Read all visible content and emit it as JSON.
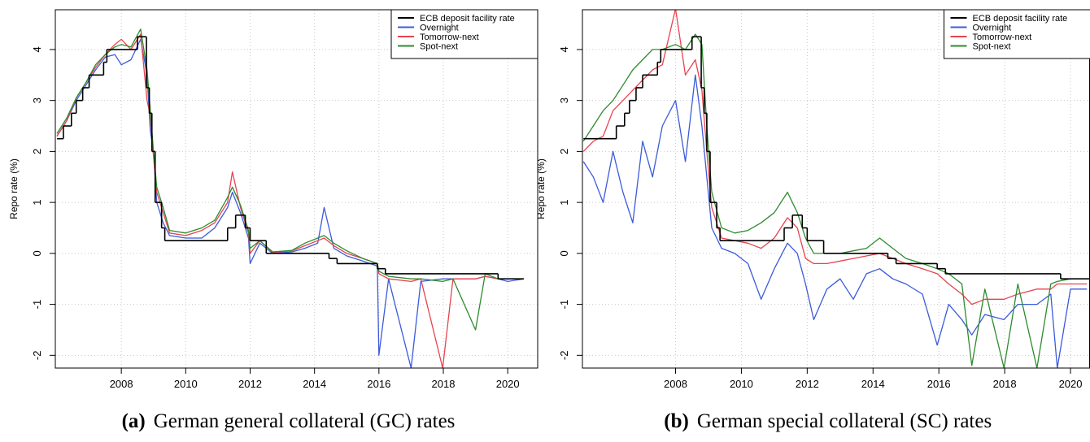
{
  "chart_data": [
    {
      "type": "line",
      "caption_label": "(a)",
      "caption": "German general collateral (GC) rates",
      "ylabel": "Repo rate (%)",
      "xlim": [
        2005.95,
        2020.93
      ],
      "ylim": [
        -2.25,
        4.78
      ],
      "xticks": [
        2008,
        2010,
        2012,
        2014,
        2016,
        2018,
        2020
      ],
      "yticks": [
        -2,
        -1,
        0,
        1,
        2,
        3,
        4
      ],
      "grid": true,
      "legend": "topright",
      "series": [
        {
          "name": "ECB deposit facility rate",
          "color": "#000000",
          "drawstyle": "steps-post",
          "x": [
            2006.0,
            2006.2,
            2006.45,
            2006.6,
            2006.8,
            2007.0,
            2007.45,
            2007.55,
            2008.5,
            2008.78,
            2008.87,
            2008.95,
            2009.05,
            2009.25,
            2009.35,
            2011.3,
            2011.55,
            2011.85,
            2012.0,
            2012.5,
            2014.45,
            2014.7,
            2015.95,
            2016.2,
            2019.7,
            2020.5
          ],
          "values": [
            2.25,
            2.5,
            2.75,
            3.0,
            3.25,
            3.5,
            3.75,
            4.0,
            4.25,
            3.25,
            2.75,
            2.0,
            1.0,
            0.5,
            0.25,
            0.5,
            0.75,
            0.5,
            0.25,
            0,
            -0.1,
            -0.2,
            -0.3,
            -0.4,
            -0.5,
            -0.5
          ]
        },
        {
          "name": "Overnight",
          "color": "#3b5bdb",
          "drawstyle": "lines",
          "x": [
            2006.0,
            2006.3,
            2006.6,
            2006.9,
            2007.2,
            2007.5,
            2007.8,
            2008.0,
            2008.3,
            2008.6,
            2008.8,
            2008.9,
            2009.0,
            2009.1,
            2009.3,
            2009.5,
            2010.0,
            2010.5,
            2010.9,
            2011.3,
            2011.45,
            2011.7,
            2011.95,
            2012.0,
            2012.3,
            2012.7,
            2013.3,
            2013.7,
            2014.1,
            2014.3,
            2014.6,
            2015.0,
            2015.5,
            2015.95,
            2016.0,
            2016.3,
            2017.0,
            2017.3,
            2017.98,
            2018.3,
            2019.0,
            2019.3,
            2019.7,
            2020.0,
            2020.5
          ],
          "values": [
            2.3,
            2.6,
            3.0,
            3.3,
            3.6,
            3.85,
            3.9,
            3.7,
            3.8,
            4.2,
            3.5,
            2.4,
            2.0,
            1.0,
            0.6,
            0.35,
            0.3,
            0.3,
            0.5,
            0.9,
            1.2,
            0.8,
            0.3,
            -0.2,
            0.2,
            0.0,
            0.03,
            0.1,
            0.2,
            0.9,
            0.1,
            -0.05,
            -0.15,
            -0.25,
            -2.0,
            -0.5,
            -2.25,
            -0.55,
            -0.5,
            -0.5,
            -0.5,
            -0.45,
            -0.5,
            -0.55,
            -0.5
          ]
        },
        {
          "name": "Tomorrow-next",
          "color": "#e8434f",
          "drawstyle": "lines",
          "x": [
            2006.0,
            2006.3,
            2006.6,
            2006.9,
            2007.2,
            2007.5,
            2007.8,
            2008.0,
            2008.3,
            2008.6,
            2008.8,
            2008.9,
            2009.0,
            2009.1,
            2009.3,
            2009.5,
            2010.0,
            2010.5,
            2010.9,
            2011.3,
            2011.45,
            2011.7,
            2011.95,
            2012.0,
            2012.3,
            2012.7,
            2013.3,
            2013.7,
            2014.1,
            2014.3,
            2014.6,
            2015.0,
            2015.5,
            2015.95,
            2016.0,
            2016.3,
            2017.0,
            2017.3,
            2017.98,
            2018.3,
            2019.0,
            2019.3,
            2019.7,
            2020.0,
            2020.5
          ],
          "values": [
            2.3,
            2.6,
            3.05,
            3.35,
            3.65,
            3.9,
            4.1,
            4.2,
            4.0,
            4.3,
            3.0,
            2.7,
            1.9,
            1.2,
            0.8,
            0.4,
            0.35,
            0.45,
            0.6,
            1.0,
            1.6,
            0.9,
            0.4,
            0.0,
            0.25,
            0.02,
            0.05,
            0.15,
            0.25,
            0.3,
            0.15,
            0.0,
            -0.1,
            -0.2,
            -0.4,
            -0.5,
            -0.55,
            -0.5,
            -2.25,
            -0.5,
            -0.5,
            -0.45,
            -0.5,
            -0.5,
            -0.5
          ]
        },
        {
          "name": "Spot-next",
          "color": "#2e8b2e",
          "drawstyle": "lines",
          "x": [
            2006.0,
            2006.3,
            2006.6,
            2006.9,
            2007.2,
            2007.5,
            2007.8,
            2008.0,
            2008.3,
            2008.6,
            2008.8,
            2008.9,
            2009.0,
            2009.1,
            2009.3,
            2009.5,
            2010.0,
            2010.5,
            2010.9,
            2011.3,
            2011.45,
            2011.7,
            2011.95,
            2012.0,
            2012.3,
            2012.7,
            2013.3,
            2013.7,
            2014.1,
            2014.3,
            2014.6,
            2015.0,
            2015.5,
            2015.95,
            2016.0,
            2016.3,
            2017.0,
            2017.3,
            2017.98,
            2018.3,
            2019.0,
            2019.3,
            2019.7,
            2020.0,
            2020.5
          ],
          "values": [
            2.35,
            2.65,
            3.05,
            3.35,
            3.7,
            3.9,
            4.05,
            4.1,
            4.05,
            4.4,
            3.6,
            2.8,
            2.0,
            1.3,
            0.9,
            0.45,
            0.4,
            0.5,
            0.65,
            1.1,
            1.3,
            0.95,
            0.45,
            0.1,
            0.25,
            0.03,
            0.06,
            0.2,
            0.3,
            0.35,
            0.2,
            0.05,
            -0.1,
            -0.2,
            -0.35,
            -0.45,
            -0.5,
            -0.5,
            -0.55,
            -0.5,
            -1.5,
            -0.4,
            -0.5,
            -0.5,
            -0.5
          ]
        }
      ]
    },
    {
      "type": "line",
      "caption_label": "(b)",
      "caption": "German special collateral (SC) rates",
      "ylabel": "Repo rate (%)",
      "xlim": [
        2005.17,
        2020.58
      ],
      "ylim": [
        -2.25,
        4.78
      ],
      "xticks": [
        2008,
        2010,
        2012,
        2014,
        2016,
        2018,
        2020
      ],
      "yticks": [
        -2,
        -1,
        0,
        1,
        2,
        3,
        4
      ],
      "grid": true,
      "legend": "topright",
      "series": [
        {
          "name": "ECB deposit facility rate",
          "color": "#000000",
          "drawstyle": "steps-post",
          "x": [
            2005.2,
            2006.2,
            2006.45,
            2006.6,
            2006.8,
            2007.0,
            2007.45,
            2007.55,
            2008.5,
            2008.78,
            2008.87,
            2008.95,
            2009.05,
            2009.25,
            2009.35,
            2011.3,
            2011.55,
            2011.85,
            2012.0,
            2012.5,
            2014.45,
            2014.7,
            2015.95,
            2016.2,
            2019.7,
            2020.58
          ],
          "values": [
            2.25,
            2.5,
            2.75,
            3.0,
            3.25,
            3.5,
            3.75,
            4.0,
            4.25,
            3.25,
            2.75,
            2.0,
            1.0,
            0.5,
            0.25,
            0.5,
            0.75,
            0.5,
            0.25,
            0,
            -0.1,
            -0.2,
            -0.3,
            -0.4,
            -0.5,
            -0.5
          ]
        },
        {
          "name": "Overnight",
          "color": "#3b5bdb",
          "drawstyle": "lines",
          "x": [
            2005.2,
            2005.5,
            2005.8,
            2006.1,
            2006.4,
            2006.7,
            2007.0,
            2007.3,
            2007.6,
            2008.0,
            2008.3,
            2008.6,
            2008.8,
            2008.95,
            2009.1,
            2009.4,
            2009.8,
            2010.2,
            2010.6,
            2011.0,
            2011.4,
            2011.7,
            2011.95,
            2012.2,
            2012.6,
            2013.0,
            2013.4,
            2013.8,
            2014.2,
            2014.6,
            2015.0,
            2015.5,
            2015.95,
            2016.3,
            2016.7,
            2017.0,
            2017.4,
            2017.98,
            2018.4,
            2018.98,
            2019.4,
            2019.6,
            2020.0,
            2020.5
          ],
          "values": [
            1.8,
            1.5,
            1.0,
            2.0,
            1.2,
            0.6,
            2.2,
            1.5,
            2.5,
            3.0,
            1.8,
            3.5,
            2.5,
            1.5,
            0.5,
            0.1,
            0.0,
            -0.2,
            -0.9,
            -0.3,
            0.2,
            0.0,
            -0.6,
            -1.3,
            -0.7,
            -0.5,
            -0.9,
            -0.4,
            -0.3,
            -0.5,
            -0.6,
            -0.8,
            -1.8,
            -1.0,
            -1.3,
            -1.6,
            -1.2,
            -1.3,
            -1.0,
            -1.0,
            -0.8,
            -2.25,
            -0.7,
            -0.7
          ]
        },
        {
          "name": "Tomorrow-next",
          "color": "#e8434f",
          "drawstyle": "lines",
          "x": [
            2005.2,
            2005.5,
            2005.8,
            2006.1,
            2006.4,
            2006.7,
            2007.0,
            2007.3,
            2007.6,
            2008.0,
            2008.3,
            2008.6,
            2008.8,
            2008.95,
            2009.1,
            2009.4,
            2009.8,
            2010.2,
            2010.6,
            2011.0,
            2011.4,
            2011.7,
            2011.95,
            2012.2,
            2012.6,
            2013.0,
            2013.4,
            2013.8,
            2014.2,
            2014.6,
            2015.0,
            2015.5,
            2015.95,
            2016.3,
            2016.7,
            2017.0,
            2017.4,
            2017.98,
            2018.4,
            2018.98,
            2019.4,
            2019.6,
            2020.0,
            2020.5
          ],
          "values": [
            2.0,
            2.2,
            2.3,
            2.8,
            3.0,
            3.2,
            3.4,
            3.6,
            3.7,
            4.8,
            3.5,
            3.8,
            3.2,
            2.0,
            0.9,
            0.3,
            0.25,
            0.2,
            0.1,
            0.3,
            0.7,
            0.5,
            -0.1,
            -0.2,
            -0.2,
            -0.15,
            -0.1,
            -0.05,
            0.0,
            -0.1,
            -0.2,
            -0.3,
            -0.4,
            -0.6,
            -0.8,
            -1.0,
            -0.9,
            -0.9,
            -0.8,
            -0.7,
            -0.7,
            -0.6,
            -0.6,
            -0.6
          ]
        },
        {
          "name": "Spot-next",
          "color": "#2e8b2e",
          "drawstyle": "lines",
          "x": [
            2005.2,
            2005.5,
            2005.8,
            2006.1,
            2006.4,
            2006.7,
            2007.0,
            2007.3,
            2007.6,
            2008.0,
            2008.3,
            2008.6,
            2008.8,
            2008.95,
            2009.1,
            2009.4,
            2009.8,
            2010.2,
            2010.6,
            2011.0,
            2011.4,
            2011.7,
            2011.95,
            2012.2,
            2012.6,
            2013.0,
            2013.4,
            2013.8,
            2014.2,
            2014.6,
            2015.0,
            2015.5,
            2015.95,
            2016.3,
            2016.7,
            2017.0,
            2017.4,
            2017.98,
            2018.4,
            2018.98,
            2019.4,
            2019.6,
            2020.0,
            2020.5
          ],
          "values": [
            2.2,
            2.5,
            2.8,
            3.0,
            3.3,
            3.6,
            3.8,
            4.0,
            4.0,
            4.1,
            4.0,
            4.3,
            4.1,
            2.5,
            1.2,
            0.5,
            0.4,
            0.45,
            0.6,
            0.8,
            1.2,
            0.8,
            0.3,
            0.0,
            0.0,
            0.0,
            0.05,
            0.1,
            0.3,
            0.1,
            -0.1,
            -0.2,
            -0.3,
            -0.4,
            -0.6,
            -2.2,
            -0.7,
            -2.25,
            -0.6,
            -2.25,
            -0.6,
            -0.55,
            -0.5,
            -0.5
          ]
        }
      ]
    }
  ]
}
